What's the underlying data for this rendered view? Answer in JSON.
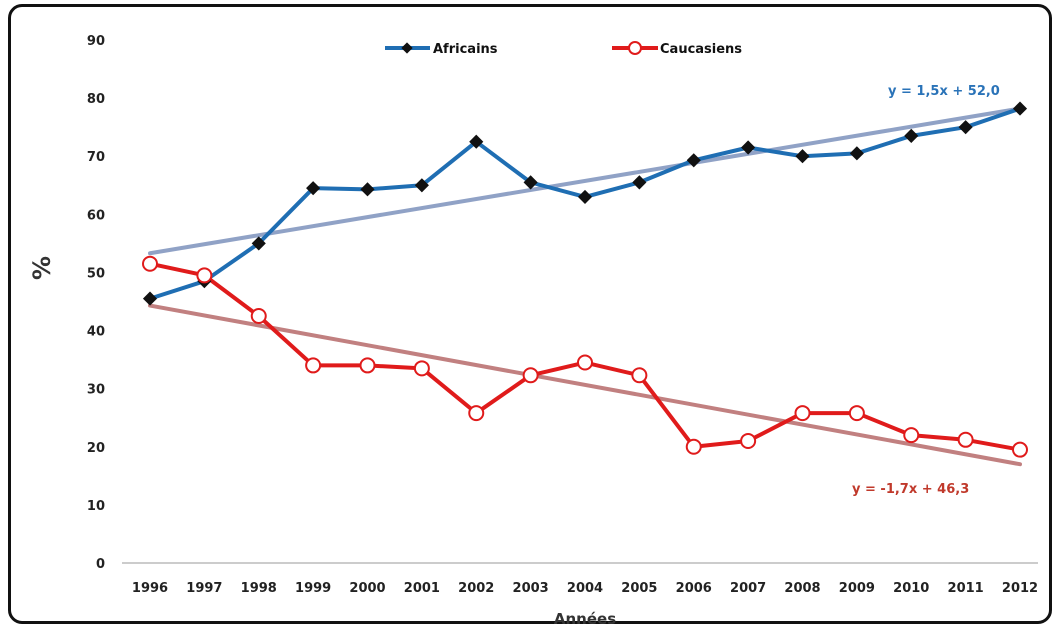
{
  "colors": {
    "africains": "#1f6eb3",
    "caucasiens": "#e01b1b",
    "trend_africains": "#7d92bd",
    "trend_caucasiens": "#b76a6a",
    "eq_africains": "#2a73b8",
    "eq_caucasiens": "#c0392b"
  },
  "chart_data": {
    "type": "line",
    "title": "",
    "xlabel": "Années",
    "ylabel": "%",
    "ylim": [
      0,
      90
    ],
    "yticks": [
      "0",
      "10",
      "20",
      "30",
      "40",
      "50",
      "60",
      "70",
      "80",
      "90"
    ],
    "categories": [
      "1996",
      "1997",
      "1998",
      "1999",
      "2000",
      "2001",
      "2002",
      "2003",
      "2004",
      "2005",
      "2006",
      "2007",
      "2008",
      "2009",
      "2010",
      "2011",
      "2012"
    ],
    "legend_position": "top-center",
    "grid": false,
    "series": [
      {
        "name": "Africains",
        "marker": "diamond",
        "values": [
          45.5,
          48.5,
          55,
          64.5,
          64.3,
          65,
          72.5,
          65.5,
          63,
          65.5,
          69.3,
          71.5,
          70,
          70.5,
          73.5,
          75,
          78.2
        ],
        "trendline": {
          "equation": "y = 1,5x + 52,0",
          "start": 53.3,
          "end": 78.2
        }
      },
      {
        "name": "Caucasiens",
        "marker": "open-circle",
        "values": [
          51.5,
          49.5,
          42.5,
          34,
          34,
          33.5,
          25.8,
          32.3,
          34.5,
          32.3,
          20,
          21,
          25.8,
          25.8,
          22,
          21.2,
          19.5
        ],
        "trendline": {
          "equation": "y = -1,7x + 46,3",
          "start": 44.3,
          "end": 17
        }
      }
    ]
  }
}
